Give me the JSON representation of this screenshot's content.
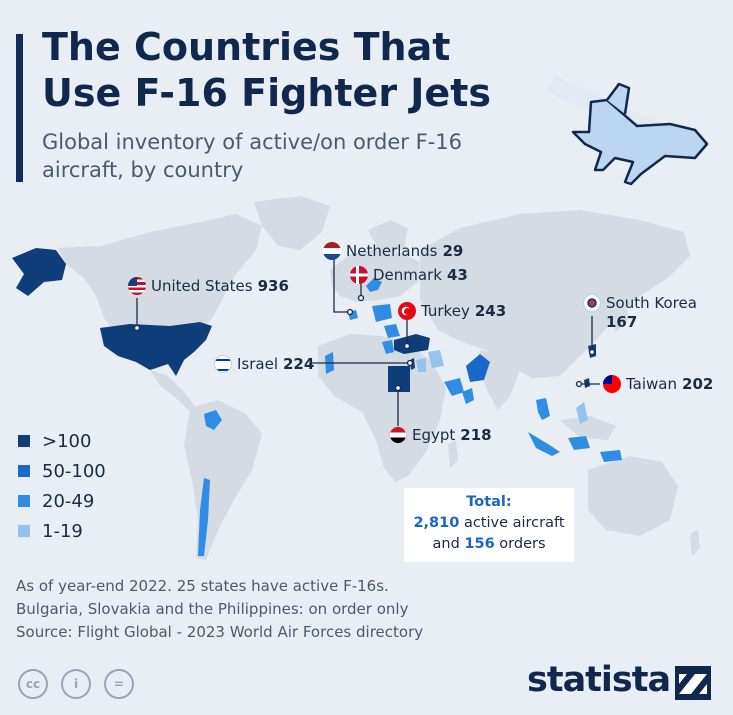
{
  "title": "The Countries That Use F-16 Fighter Jets",
  "subtitle": "Global inventory of active/on order F-16 aircraft, by country",
  "legend": [
    {
      "label": ">100",
      "color": "#0f3d7a"
    },
    {
      "label": "50-100",
      "color": "#1768c8"
    },
    {
      "label": "20-49",
      "color": "#2f8de6"
    },
    {
      "label": "1-19",
      "color": "#94c3ef"
    }
  ],
  "countries": [
    {
      "name": "United States",
      "value": "936",
      "flag": "us-flag-icon"
    },
    {
      "name": "Netherlands",
      "value": "29",
      "flag": "netherlands-flag-icon"
    },
    {
      "name": "Denmark",
      "value": "43",
      "flag": "denmark-flag-icon"
    },
    {
      "name": "Turkey",
      "value": "243",
      "flag": "turkey-flag-icon"
    },
    {
      "name": "South Korea",
      "value": "167",
      "flag": "south-korea-flag-icon"
    },
    {
      "name": "Israel",
      "value": "224",
      "flag": "israel-flag-icon"
    },
    {
      "name": "Taiwan",
      "value": "202",
      "flag": "taiwan-flag-icon"
    },
    {
      "name": "Egypt",
      "value": "218",
      "flag": "egypt-flag-icon"
    }
  ],
  "total": {
    "heading": "Total:",
    "active_value": "2,810",
    "active_text": "active aircraft",
    "and": "and",
    "orders_value": "156",
    "orders_text": "orders"
  },
  "footnote": [
    "As of year-end 2022. 25 states have active F-16s.",
    "Bulgaria, Slovakia and the Philippines: on order only",
    "Source: Flight Global - 2023 World Air Forces directory"
  ],
  "license_icons": [
    "cc-icon",
    "attribution-icon",
    "no-derivatives-icon"
  ],
  "license_text": [
    "cc",
    "i",
    "="
  ],
  "brand": "statista",
  "colors": {
    "land": "#d5dbe2",
    "background": "#e9eef4",
    "accent": "#0f2d5c"
  }
}
